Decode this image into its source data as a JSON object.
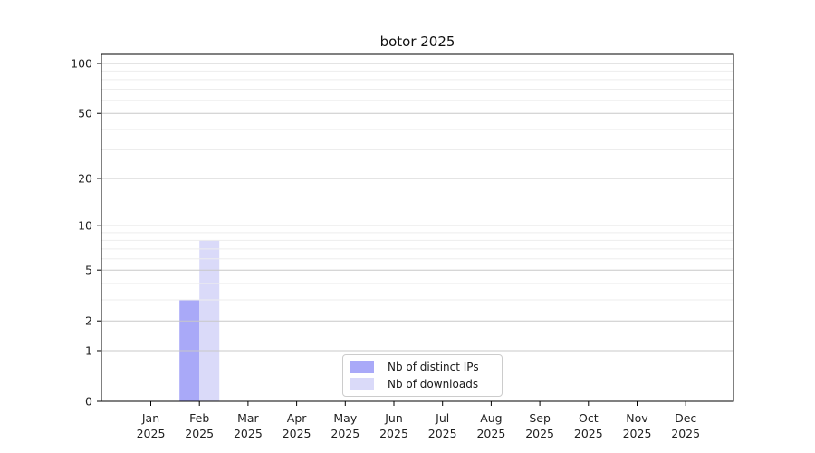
{
  "page": {
    "background": "#ffffff"
  },
  "chart_data": {
    "type": "bar",
    "title": "botor 2025",
    "categories": [
      "Jan",
      "Feb",
      "Mar",
      "Apr",
      "May",
      "Jun",
      "Jul",
      "Aug",
      "Sep",
      "Oct",
      "Nov",
      "Dec"
    ],
    "category_year": "2025",
    "series": [
      {
        "name": "Nb of distinct IPs",
        "color": "#a9a9f8",
        "values": [
          0,
          3,
          0,
          0,
          0,
          0,
          0,
          0,
          0,
          0,
          0,
          0
        ]
      },
      {
        "name": "Nb of downloads",
        "color": "#dadaf9",
        "values": [
          0,
          8,
          0,
          0,
          0,
          0,
          0,
          0,
          0,
          0,
          0,
          0
        ]
      }
    ],
    "y_axis": {
      "scale": "log1p",
      "ticks": [
        0,
        1,
        2,
        5,
        10,
        20,
        50,
        100
      ],
      "minor_gridlines": [
        3,
        4,
        6,
        7,
        8,
        9,
        30,
        40,
        60,
        70,
        80,
        90
      ],
      "ylim": [
        0,
        100
      ]
    },
    "x_axis": {
      "tick_label_lines": 2
    },
    "legend": {
      "position": "lower-center"
    },
    "grid": true,
    "colors": {
      "grid_major": "#c8c8c8",
      "grid_minor": "#ededed",
      "axis": "#000000",
      "text": "#1f1f1f",
      "legend_border": "#cccccc",
      "legend_bg": "#ffffff"
    }
  }
}
